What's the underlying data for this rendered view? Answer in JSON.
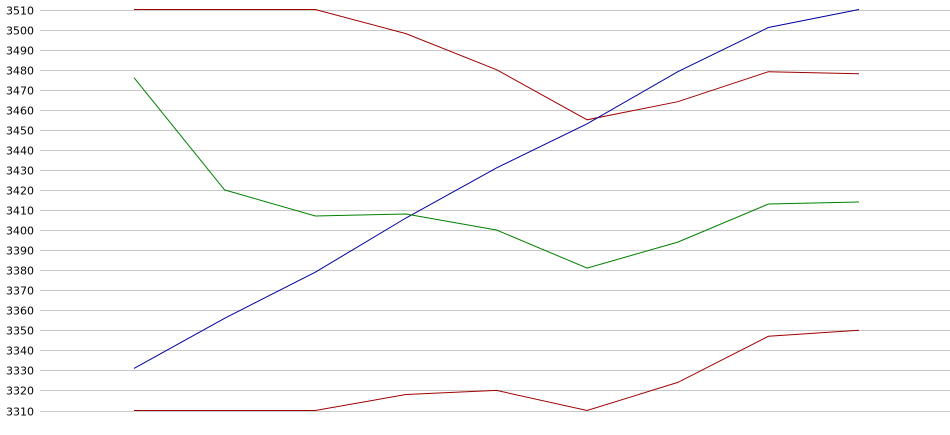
{
  "chart_data": {
    "type": "line",
    "title": "",
    "xlabel": "",
    "ylabel": "",
    "ylim": [
      3310,
      3510
    ],
    "ytick_step": 10,
    "yticks": [
      "3310",
      "3320",
      "3330",
      "3340",
      "3350",
      "3360",
      "3370",
      "3380",
      "3390",
      "3400",
      "3410",
      "3420",
      "3430",
      "3440",
      "3450",
      "3460",
      "3470",
      "3480",
      "3490",
      "3500",
      "3510"
    ],
    "grid": true,
    "legend": "none",
    "x": [
      1,
      2,
      3,
      4,
      5,
      6,
      7,
      8,
      9
    ],
    "series": [
      {
        "color": "#a00000",
        "values": [
          3510,
          3510,
          3510,
          3498,
          3480,
          3455,
          3464,
          3479,
          3478
        ]
      },
      {
        "color": "#0000a0",
        "values": [
          3331,
          3356,
          3379,
          3406,
          3431,
          3453,
          3479,
          3501,
          3510
        ]
      },
      {
        "color": "#008000",
        "values": [
          3476,
          3420,
          3407,
          3408,
          3400,
          3381,
          3394,
          3413,
          3414
        ]
      },
      {
        "color": "#a00000",
        "values": [
          3310,
          3310,
          3310,
          3318,
          3320,
          3310,
          3324,
          3347,
          3350
        ]
      }
    ]
  }
}
